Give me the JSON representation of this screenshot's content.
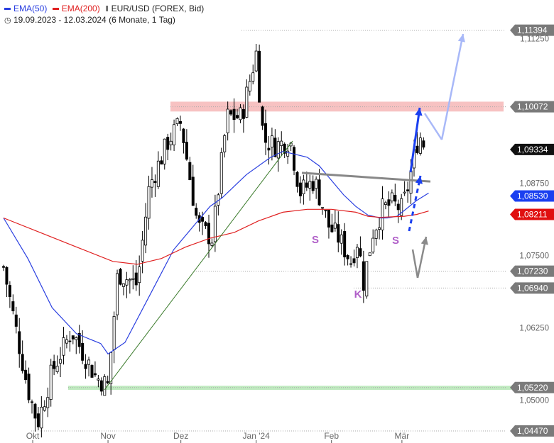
{
  "header": {
    "ema50_label": "EMA(50)",
    "ema200_label": "EMA(200)",
    "instrument_label": "EUR/USD (FOREX, Bid)",
    "instrument_icon": "candlestick-icon",
    "clock_icon": "clock-icon",
    "date_range": "19.09.2023 - 12.03.2024",
    "period_label": "(6 Monate, 1 Tag)"
  },
  "colors": {
    "ema50": "#2a3fe0",
    "ema200": "#e02020",
    "resistance_zone": "#f6b7b7",
    "support_zone": "#b8e8b8",
    "neckline": "#888888",
    "trendline": "#3a7a2a",
    "pattern_label": "#b05fc8",
    "arrow_bull": "#1a3ff0",
    "arrow_target": "#a8b8f8",
    "arrow_gray": "#8a8a8a",
    "badge_gray": "#7a7a7a",
    "badge_black": "#111111",
    "badge_blue": "#1a3ff0",
    "badge_red": "#e01010"
  },
  "chart_data": {
    "type": "candlestick",
    "ylim": [
      1.0447,
      1.1139
    ],
    "y_ticks": [
      "1,11250",
      "1,08750",
      "1,07500",
      "1,06250",
      "1,05000"
    ],
    "y_tick_values": [
      1.1125,
      1.0875,
      1.075,
      1.0625,
      1.05
    ],
    "x_labels": [
      "Okt",
      "Nov",
      "Dez",
      "Jan '24",
      "Feb",
      "Mär"
    ],
    "x_label_days": [
      12,
      43,
      73,
      104,
      135,
      164
    ],
    "price_badges": [
      {
        "label": "1,11394",
        "value": 1.11394,
        "style": "gray"
      },
      {
        "label": "1,10072",
        "value": 1.10072,
        "style": "gray"
      },
      {
        "label": "1,09334",
        "value": 1.09334,
        "style": "black"
      },
      {
        "label": "1,08530",
        "value": 1.0853,
        "style": "blue"
      },
      {
        "label": "1,08211",
        "value": 1.08211,
        "style": "red"
      },
      {
        "label": "1,07230",
        "value": 1.0723,
        "style": "gray"
      },
      {
        "label": "1,06940",
        "value": 1.0694,
        "style": "gray"
      },
      {
        "label": "1,05220",
        "value": 1.0522,
        "style": "gray"
      },
      {
        "label": "1,04470",
        "value": 1.0447,
        "style": "gray"
      }
    ],
    "pattern_labels": [
      {
        "text": "S",
        "day": 130,
        "price": 1.0775
      },
      {
        "text": "K",
        "day": 148,
        "price": 1.0665
      },
      {
        "text": "S",
        "day": 164,
        "price": 1.0773
      }
    ],
    "series": [
      {
        "name": "EMA(50)",
        "day": [
          0,
          10,
          20,
          30,
          40,
          43,
          50,
          60,
          70,
          80,
          85,
          90,
          100,
          110,
          115,
          118,
          125,
          130,
          135,
          140,
          145,
          150,
          155,
          158,
          162,
          165,
          170,
          175
        ],
        "value": [
          1.0815,
          1.0745,
          1.066,
          1.0615,
          1.0598,
          1.058,
          1.06,
          1.068,
          1.076,
          1.081,
          1.0835,
          1.085,
          1.089,
          1.092,
          1.093,
          1.0927,
          1.092,
          1.0905,
          1.088,
          1.0855,
          1.0835,
          1.082,
          1.0815,
          1.0815,
          1.0818,
          1.0828,
          1.0845,
          1.0858
        ]
      },
      {
        "name": "EMA(200)",
        "day": [
          0,
          15,
          30,
          45,
          55,
          65,
          75,
          85,
          95,
          105,
          115,
          125,
          135,
          145,
          150,
          155,
          160,
          165,
          170,
          175
        ],
        "value": [
          1.0815,
          1.079,
          1.0765,
          1.074,
          1.0735,
          1.0745,
          1.0765,
          1.078,
          1.079,
          1.081,
          1.0825,
          1.083,
          1.083,
          1.0825,
          1.0818,
          1.0816,
          1.0817,
          1.0818,
          1.0821,
          1.0827
        ]
      }
    ],
    "candles_ohlc_anchor": [
      {
        "day": 0,
        "close": 1.073
      },
      {
        "day": 10,
        "close": 1.052
      },
      {
        "day": 14,
        "close": 1.046
      },
      {
        "day": 20,
        "close": 1.055
      },
      {
        "day": 28,
        "close": 1.062
      },
      {
        "day": 38,
        "close": 1.054
      },
      {
        "day": 43,
        "close": 1.0525
      },
      {
        "day": 47,
        "close": 1.072
      },
      {
        "day": 55,
        "close": 1.07
      },
      {
        "day": 60,
        "close": 1.087
      },
      {
        "day": 68,
        "close": 1.095
      },
      {
        "day": 73,
        "close": 1.098
      },
      {
        "day": 80,
        "close": 1.08
      },
      {
        "day": 86,
        "close": 1.078
      },
      {
        "day": 92,
        "close": 1.099
      },
      {
        "day": 98,
        "close": 1.099
      },
      {
        "day": 104,
        "close": 1.11
      },
      {
        "day": 107,
        "close": 1.095
      },
      {
        "day": 112,
        "close": 1.094
      },
      {
        "day": 118,
        "close": 1.095
      },
      {
        "day": 122,
        "close": 1.086
      },
      {
        "day": 128,
        "close": 1.088
      },
      {
        "day": 134,
        "close": 1.08
      },
      {
        "day": 138,
        "close": 1.078
      },
      {
        "day": 143,
        "close": 1.074
      },
      {
        "day": 146,
        "close": 1.078
      },
      {
        "day": 148,
        "close": 1.07
      },
      {
        "day": 152,
        "close": 1.079
      },
      {
        "day": 156,
        "close": 1.083
      },
      {
        "day": 160,
        "close": 1.084
      },
      {
        "day": 164,
        "close": 1.083
      },
      {
        "day": 166,
        "close": 1.086
      },
      {
        "day": 168,
        "close": 1.09
      },
      {
        "day": 171,
        "close": 1.096
      },
      {
        "day": 174,
        "close": 1.0933
      }
    ]
  }
}
